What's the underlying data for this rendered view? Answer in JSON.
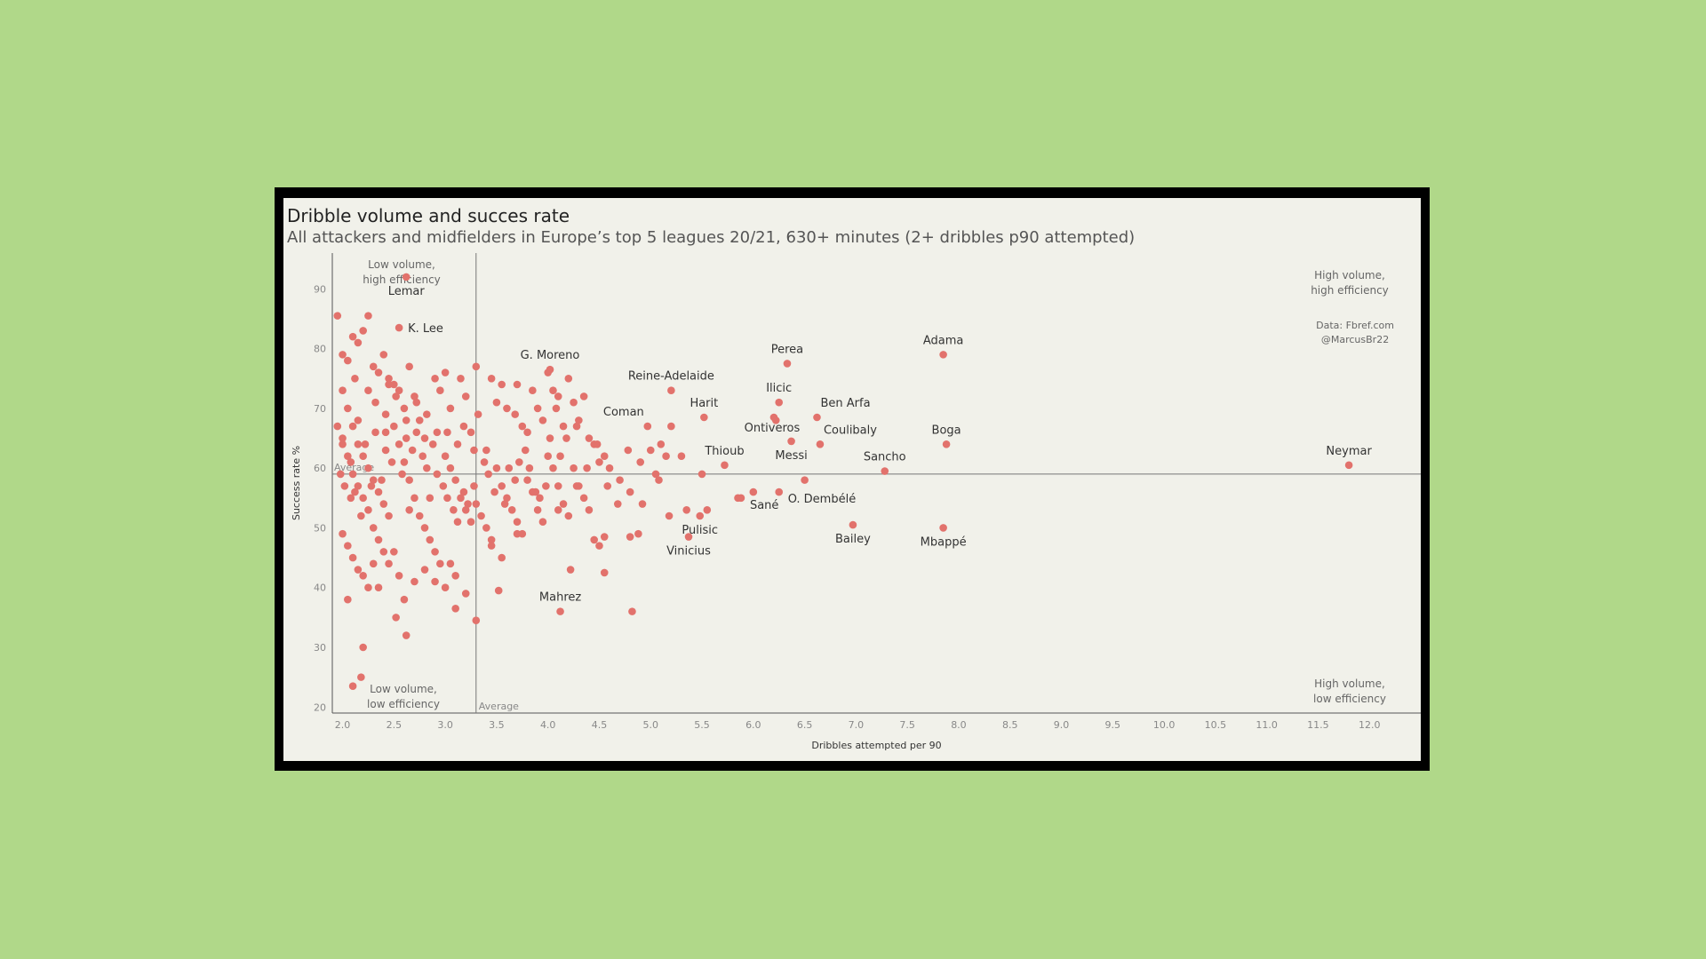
{
  "header": {
    "title": "Dribble volume and succes rate",
    "subtitle": "All attackers and midfielders in Europe’s top 5 leagues 20/21, 630+ minutes (2+ dribbles p90 attempted)",
    "credit_source": "Data: Fbref.com",
    "credit_author": "@MarcusBr22"
  },
  "colors": {
    "point": "#e2726c",
    "background": "#b0d889",
    "panel": "#f1f1ea"
  },
  "chart_data": {
    "type": "scatter",
    "xlabel": "Dribbles attempted per 90",
    "ylabel": "Success rate %",
    "xlim": [
      1.9,
      12.5
    ],
    "ylim": [
      19,
      96
    ],
    "xticks": [
      2.0,
      2.5,
      3.0,
      3.5,
      4.0,
      4.5,
      5.0,
      5.5,
      6.0,
      6.5,
      7.0,
      7.5,
      8.0,
      8.5,
      9.0,
      9.5,
      10.0,
      10.5,
      11.0,
      11.5,
      12.0
    ],
    "xtick_labels": [
      "2.0",
      "2.5",
      "3.0",
      "3.5",
      "4.0",
      "4.5",
      "5.0",
      "5.5",
      "6.0",
      "6.5",
      "7.0",
      "7.5",
      "8.0",
      "8.5",
      "9.0",
      "9.5",
      "10.0",
      "10.5",
      "11.0",
      "11.5",
      "12.0"
    ],
    "yticks": [
      20,
      30,
      40,
      50,
      60,
      70,
      80,
      90
    ],
    "ytick_labels": [
      "20",
      "30",
      "40",
      "50",
      "60",
      "70",
      "80",
      "90"
    ],
    "average_x": 3.3,
    "average_y": 59,
    "average_label_x": "Average",
    "average_label_y": "Average",
    "quadrant_labels": {
      "top_left": [
        "Low volume,",
        "high efficiency"
      ],
      "top_right": [
        "High volume,",
        "high efficiency"
      ],
      "bottom_left": [
        "Low volume,",
        "low efficiency"
      ],
      "bottom_right": [
        "High volume,",
        "low efficiency"
      ]
    },
    "grid": false,
    "labeled_points": [
      {
        "label": "Lemar",
        "x": 2.62,
        "y": 92,
        "pos": "below"
      },
      {
        "label": "K. Lee",
        "x": 2.55,
        "y": 83.5,
        "pos": "right"
      },
      {
        "label": "G. Moreno",
        "x": 4.02,
        "y": 76.5,
        "pos": "above"
      },
      {
        "label": "Reine-Adelaide",
        "x": 5.2,
        "y": 73,
        "pos": "above"
      },
      {
        "label": "Perea",
        "x": 6.33,
        "y": 77.5,
        "pos": "above"
      },
      {
        "label": "Adama",
        "x": 7.85,
        "y": 79,
        "pos": "above"
      },
      {
        "label": "Ilicic",
        "x": 6.25,
        "y": 71,
        "pos": "above"
      },
      {
        "label": "Harit",
        "x": 5.52,
        "y": 68.5,
        "pos": "above"
      },
      {
        "label": "Coman",
        "x": 4.97,
        "y": 67,
        "pos": "aboveleft"
      },
      {
        "label": "Ben Arfa",
        "x": 6.62,
        "y": 68.5,
        "pos": "aboveright"
      },
      {
        "label": "Ontiveros",
        "x": 6.2,
        "y": 68.5,
        "pos": "belowleft"
      },
      {
        "label": "Coulibaly",
        "x": 6.65,
        "y": 64,
        "pos": "aboveright"
      },
      {
        "label": "Boga",
        "x": 7.88,
        "y": 64,
        "pos": "above"
      },
      {
        "label": "Messi",
        "x": 6.37,
        "y": 64.5,
        "pos": "below"
      },
      {
        "label": "Thioub",
        "x": 5.72,
        "y": 60.5,
        "pos": "above"
      },
      {
        "label": "Sancho",
        "x": 7.28,
        "y": 59.5,
        "pos": "above"
      },
      {
        "label": "Neymar",
        "x": 11.8,
        "y": 60.5,
        "pos": "above"
      },
      {
        "label": "O. Dembélé",
        "x": 6.25,
        "y": 56,
        "pos": "belowright"
      },
      {
        "label": "Sané",
        "x": 5.88,
        "y": 55,
        "pos": "belowright"
      },
      {
        "label": "Pulisic",
        "x": 5.48,
        "y": 52,
        "pos": "below"
      },
      {
        "label": "Vinicius",
        "x": 5.37,
        "y": 48.5,
        "pos": "below"
      },
      {
        "label": "Bailey",
        "x": 6.97,
        "y": 50.5,
        "pos": "below"
      },
      {
        "label": "Mbappé",
        "x": 7.85,
        "y": 50,
        "pos": "below"
      },
      {
        "label": "Mahrez",
        "x": 4.12,
        "y": 36,
        "pos": "above"
      }
    ],
    "points": [
      [
        1.95,
        85.5
      ],
      [
        2.0,
        79
      ],
      [
        2.05,
        78
      ],
      [
        2.1,
        82
      ],
      [
        2.12,
        75
      ],
      [
        2.15,
        81
      ],
      [
        2.2,
        83
      ],
      [
        2.25,
        85.5
      ],
      [
        2.3,
        77
      ],
      [
        2.35,
        76
      ],
      [
        2.4,
        79
      ],
      [
        2.45,
        75
      ],
      [
        2.5,
        74
      ],
      [
        2.55,
        73
      ],
      [
        2.6,
        70
      ],
      [
        2.65,
        77
      ],
      [
        2.7,
        72
      ],
      [
        2.75,
        68
      ],
      [
        2.8,
        65
      ],
      [
        2.9,
        75
      ],
      [
        2.95,
        73
      ],
      [
        3.0,
        76
      ],
      [
        3.05,
        70
      ],
      [
        3.15,
        75
      ],
      [
        3.2,
        72
      ],
      [
        3.25,
        66
      ],
      [
        3.3,
        77
      ],
      [
        3.32,
        69
      ],
      [
        3.4,
        63
      ],
      [
        3.45,
        75
      ],
      [
        3.5,
        71
      ],
      [
        3.55,
        74
      ],
      [
        3.6,
        70
      ],
      [
        3.7,
        74
      ],
      [
        3.75,
        67
      ],
      [
        3.8,
        66
      ],
      [
        3.85,
        73
      ],
      [
        3.9,
        70
      ],
      [
        3.95,
        68
      ],
      [
        4.0,
        76
      ],
      [
        4.05,
        73
      ],
      [
        4.1,
        72
      ],
      [
        4.15,
        67
      ],
      [
        4.2,
        75
      ],
      [
        4.25,
        71
      ],
      [
        4.3,
        68
      ],
      [
        4.35,
        72
      ],
      [
        4.4,
        65
      ],
      [
        4.45,
        64
      ],
      [
        4.5,
        61
      ],
      [
        4.55,
        62
      ],
      [
        4.6,
        60
      ],
      [
        4.7,
        58
      ],
      [
        4.8,
        56
      ],
      [
        4.9,
        61
      ],
      [
        5.0,
        63
      ],
      [
        5.05,
        59
      ],
      [
        5.1,
        64
      ],
      [
        5.15,
        62
      ],
      [
        5.2,
        67
      ],
      [
        5.3,
        62
      ],
      [
        5.35,
        53
      ],
      [
        5.55,
        53
      ],
      [
        5.5,
        59
      ],
      [
        5.85,
        55
      ],
      [
        6.0,
        56
      ],
      [
        6.22,
        68
      ],
      [
        6.5,
        58
      ],
      [
        5.18,
        52
      ],
      [
        2.0,
        73
      ],
      [
        2.05,
        70
      ],
      [
        2.1,
        67
      ],
      [
        2.15,
        64
      ],
      [
        2.2,
        62
      ],
      [
        2.25,
        60
      ],
      [
        2.3,
        58
      ],
      [
        2.35,
        56
      ],
      [
        2.4,
        54
      ],
      [
        2.45,
        52
      ],
      [
        2.0,
        65
      ],
      [
        2.05,
        62
      ],
      [
        2.1,
        59
      ],
      [
        2.15,
        57
      ],
      [
        2.2,
        55
      ],
      [
        2.25,
        53
      ],
      [
        2.3,
        50
      ],
      [
        2.35,
        48
      ],
      [
        2.4,
        46
      ],
      [
        2.45,
        44
      ],
      [
        2.5,
        67
      ],
      [
        2.55,
        64
      ],
      [
        2.6,
        61
      ],
      [
        2.65,
        58
      ],
      [
        2.7,
        55
      ],
      [
        2.75,
        52
      ],
      [
        2.8,
        50
      ],
      [
        2.85,
        48
      ],
      [
        2.9,
        46
      ],
      [
        2.95,
        44
      ],
      [
        3.0,
        62
      ],
      [
        3.05,
        60
      ],
      [
        3.1,
        58
      ],
      [
        3.15,
        55
      ],
      [
        3.2,
        53
      ],
      [
        3.25,
        51
      ],
      [
        3.3,
        54
      ],
      [
        3.35,
        52
      ],
      [
        3.4,
        50
      ],
      [
        3.45,
        48
      ],
      [
        3.5,
        60
      ],
      [
        3.55,
        57
      ],
      [
        3.6,
        55
      ],
      [
        3.65,
        53
      ],
      [
        3.7,
        51
      ],
      [
        3.75,
        49
      ],
      [
        3.8,
        58
      ],
      [
        3.85,
        56
      ],
      [
        3.9,
        53
      ],
      [
        3.95,
        51
      ],
      [
        4.0,
        62
      ],
      [
        4.05,
        60
      ],
      [
        4.1,
        57
      ],
      [
        4.15,
        54
      ],
      [
        4.2,
        52
      ],
      [
        4.25,
        60
      ],
      [
        4.3,
        57
      ],
      [
        4.35,
        55
      ],
      [
        4.4,
        53
      ],
      [
        4.45,
        48
      ],
      [
        2.0,
        49
      ],
      [
        2.05,
        47
      ],
      [
        2.1,
        45
      ],
      [
        2.15,
        43
      ],
      [
        2.2,
        42
      ],
      [
        2.25,
        40
      ],
      [
        2.3,
        44
      ],
      [
        2.35,
        40
      ],
      [
        2.5,
        46
      ],
      [
        2.55,
        42
      ],
      [
        2.6,
        38
      ],
      [
        2.7,
        41
      ],
      [
        2.8,
        43
      ],
      [
        2.9,
        41
      ],
      [
        3.0,
        40
      ],
      [
        3.05,
        44
      ],
      [
        3.1,
        42
      ],
      [
        3.2,
        39
      ],
      [
        2.52,
        35
      ],
      [
        2.62,
        32
      ],
      [
        2.05,
        38
      ],
      [
        2.2,
        30
      ],
      [
        2.1,
        23.5
      ],
      [
        2.18,
        25
      ],
      [
        3.1,
        36.5
      ],
      [
        3.3,
        34.5
      ],
      [
        3.52,
        39.5
      ],
      [
        4.22,
        43
      ],
      [
        4.55,
        42.5
      ],
      [
        4.82,
        36
      ],
      [
        4.55,
        48.5
      ],
      [
        4.8,
        48.5
      ],
      [
        4.88,
        49
      ],
      [
        4.5,
        47
      ],
      [
        3.45,
        47
      ],
      [
        3.55,
        45
      ],
      [
        3.7,
        49
      ],
      [
        4.1,
        53
      ],
      [
        1.95,
        67
      ],
      [
        2.0,
        64
      ],
      [
        2.02,
        57
      ],
      [
        2.08,
        55
      ],
      [
        2.12,
        56
      ],
      [
        2.18,
        52
      ],
      [
        2.28,
        57
      ],
      [
        2.38,
        58
      ],
      [
        2.42,
        63
      ],
      [
        2.48,
        61
      ],
      [
        2.58,
        59
      ],
      [
        2.68,
        63
      ],
      [
        2.72,
        66
      ],
      [
        2.78,
        62
      ],
      [
        2.88,
        64
      ],
      [
        2.92,
        59
      ],
      [
        2.98,
        57
      ],
      [
        3.02,
        55
      ],
      [
        3.08,
        53
      ],
      [
        3.12,
        51
      ],
      [
        3.18,
        56
      ],
      [
        3.22,
        54
      ],
      [
        3.28,
        57
      ],
      [
        3.38,
        61
      ],
      [
        3.42,
        59
      ],
      [
        3.48,
        56
      ],
      [
        3.58,
        54
      ],
      [
        3.62,
        60
      ],
      [
        3.68,
        58
      ],
      [
        3.72,
        61
      ],
      [
        3.78,
        63
      ],
      [
        3.82,
        60
      ],
      [
        3.88,
        56
      ],
      [
        3.92,
        55
      ],
      [
        3.98,
        57
      ],
      [
        4.02,
        65
      ],
      [
        4.12,
        62
      ],
      [
        4.18,
        65
      ],
      [
        4.28,
        57
      ],
      [
        4.38,
        60
      ],
      [
        4.48,
        64
      ],
      [
        4.58,
        57
      ],
      [
        4.68,
        54
      ],
      [
        4.78,
        63
      ],
      [
        4.92,
        54
      ],
      [
        5.08,
        58
      ],
      [
        2.32,
        71
      ],
      [
        2.42,
        69
      ],
      [
        2.52,
        72
      ],
      [
        2.62,
        68
      ],
      [
        2.72,
        71
      ],
      [
        2.82,
        69
      ],
      [
        2.92,
        66
      ],
      [
        3.02,
        66
      ],
      [
        3.12,
        64
      ],
      [
        1.98,
        59
      ],
      [
        2.08,
        61
      ],
      [
        2.22,
        64
      ],
      [
        2.32,
        66
      ],
      [
        2.42,
        66
      ],
      [
        2.62,
        65
      ],
      [
        2.82,
        60
      ],
      [
        3.18,
        67
      ],
      [
        3.28,
        63
      ],
      [
        3.68,
        69
      ],
      [
        4.08,
        70
      ],
      [
        4.28,
        67
      ],
      [
        2.15,
        68
      ],
      [
        2.25,
        73
      ],
      [
        2.45,
        74
      ],
      [
        2.65,
        53
      ],
      [
        2.85,
        55
      ]
    ]
  }
}
